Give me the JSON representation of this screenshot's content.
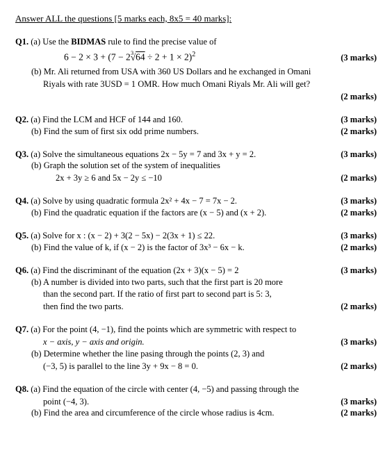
{
  "header": "Answer ALL the questions [5 marks each, 8x5 = 40 marks]:",
  "q1": {
    "label": "Q1.",
    "a_text": "(a) Use the ",
    "a_bold": "BIDMAS",
    "a_text2": " rule to find the precise value of",
    "formula": "6 − 2 × 3 + (7 − 2∛64 ÷ 2 + 1 × 2)²",
    "a_marks": "(3 marks)",
    "b_l1": "(b) Mr. Ali returned from USA with 360 US Dollars and he exchanged in Omani",
    "b_l2": "Riyals with rate 3USD = 1 OMR. How much Omani Riyals Mr. Ali will get?",
    "b_marks": "(2 marks)"
  },
  "q2": {
    "label": "Q2.",
    "a": "(a) Find the LCM and HCF of 144 and 160.",
    "a_marks": "(3 marks)",
    "b": "(b) Find the sum of first six odd prime numbers.",
    "b_marks": "(2 marks)"
  },
  "q3": {
    "label": "Q3.",
    "a": "(a) Solve the simultaneous equations   2x − 5y = 7 and 3x + y = 2.",
    "a_marks": "(3 marks)",
    "b": "(b) Graph the solution set of the system of inequalities",
    "b_l2": "2x + 3y ≥ 6 and 5x − 2y ≤ −10",
    "b_marks": "(2 marks)"
  },
  "q4": {
    "label": "Q4.",
    "a": "(a) Solve by using quadratic formula 2x² + 4x − 7 = 7x − 2.",
    "a_marks": "(3 marks)",
    "b": "(b) Find the quadratic equation if the factors are (x − 5) and (x + 2).",
    "b_marks": "(2 marks)"
  },
  "q5": {
    "label": "Q5.",
    "a": "(a) Solve for  x :   (x − 2) + 3(2 − 5x) − 2(3x + 1) ≤ 22.",
    "a_marks": "(3 marks)",
    "b": "(b) Find the value of k, if (x − 2) is the factor of 3x³ − 6x − k.",
    "b_marks": "(2 marks)"
  },
  "q6": {
    "label": "Q6.",
    "a": "(a)  Find the discriminant of the equation (2x + 3)(x − 5) = 2",
    "a_marks": "(3 marks)",
    "b_l1": "(b)  A number is divided into two parts, such that the first part is 20 more",
    "b_l2": "than the second part.  If the ratio of first part to second part is 5: 3,",
    "b_l3": "then find the two parts.",
    "b_marks": "(2 marks)"
  },
  "q7": {
    "label": "Q7.",
    "a_l1": "(a) For the point  (4, −1),  find the points which are symmetric with respect to",
    "a_l2_italic": "x − axis,  y − axis   and  origin.",
    "a_marks": "(3 marks)",
    "b_l1": "(b) Determine whether the line pasing through the points (2, 3) and",
    "b_l2": "(−3, 5) is parallel to the line 3y + 9x − 8 = 0.",
    "b_marks": "(2 marks)"
  },
  "q8": {
    "label": "Q8.",
    "a_l1": "(a) Find the equation of the circle with center   (4, −5) and passing through the",
    "a_l2": "point (−4, 3).",
    "a_marks": "(3 marks)",
    "b": "(b) Find the area and circumference of the circle whose radius is 4cm.",
    "b_marks": "(2 marks)"
  }
}
